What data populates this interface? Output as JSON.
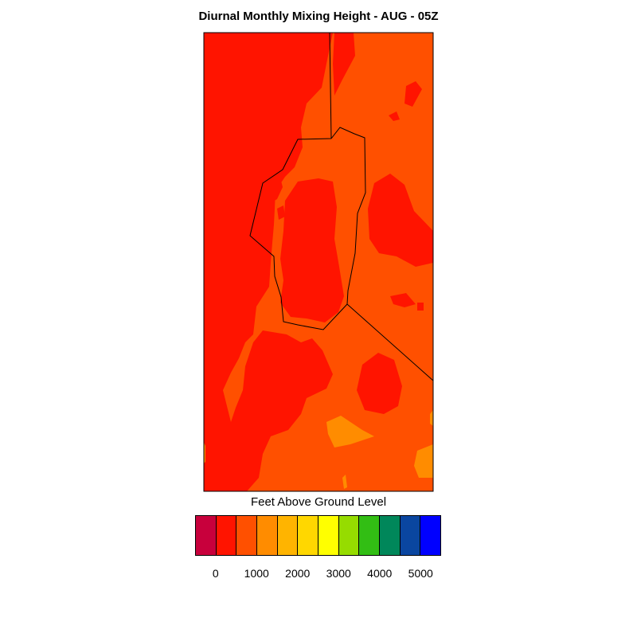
{
  "title": "Diurnal Monthly Mixing Height - AUG - 05Z",
  "legend": {
    "title": "Feet Above Ground Level",
    "colors": [
      "#c8003c",
      "#ff1400",
      "#ff5000",
      "#ff8c00",
      "#ffb400",
      "#ffd700",
      "#ffff00",
      "#96dc00",
      "#32be14",
      "#00875a",
      "#0a46a0",
      "#0000ff"
    ],
    "tick_labels": [
      "0",
      "1000",
      "2000",
      "3000",
      "4000",
      "5000"
    ]
  },
  "map": {
    "fill_colors": {
      "red": "#ff1400",
      "orange_red": "#ff5000",
      "orange": "#ff8c00",
      "gold": "#ffa500"
    },
    "outline_color": "#000000"
  }
}
